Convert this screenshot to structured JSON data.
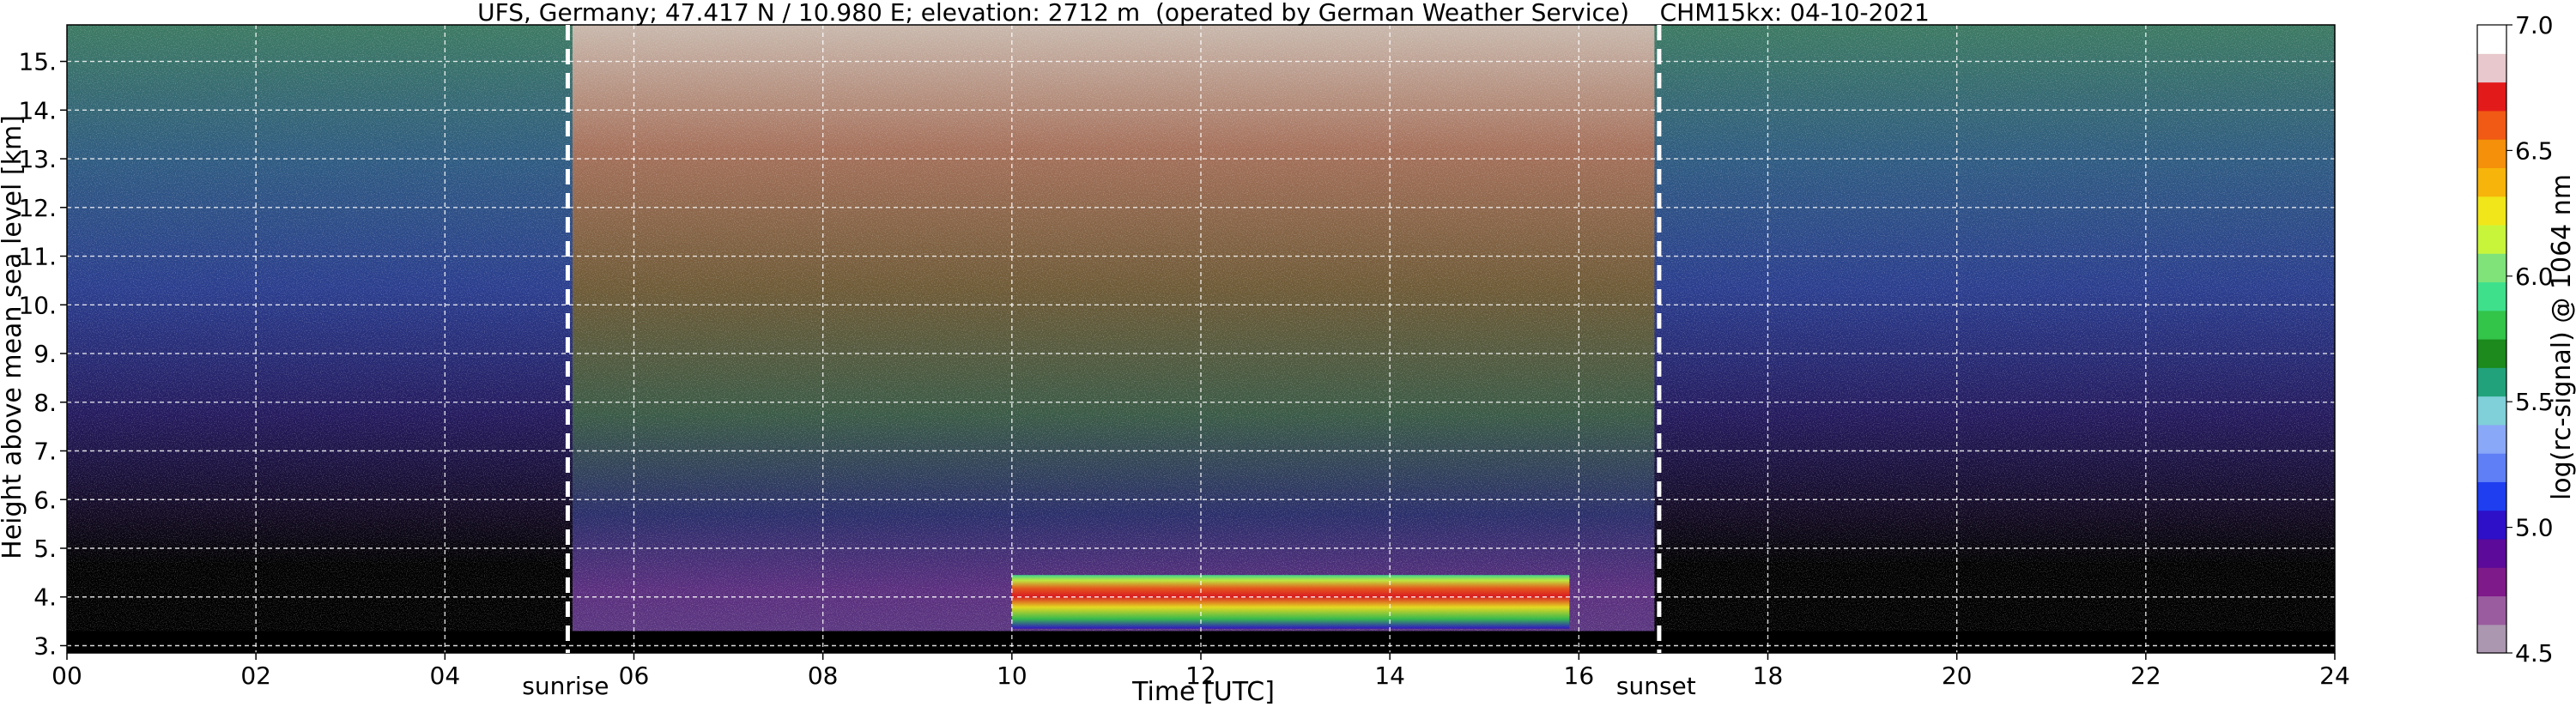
{
  "chart_data": {
    "type": "heatmap",
    "title": "UFS, Germany; 47.417 N / 10.980 E; elevation: 2712 m  (operated by German Weather Service)    CHM15kx: 04-10-2021",
    "xlabel": "Time [UTC]",
    "ylabel": "Height above mean sea level [km]",
    "x_ticks": [
      "00",
      "02",
      "04",
      "06",
      "08",
      "10",
      "12",
      "14",
      "16",
      "18",
      "20",
      "22",
      "24"
    ],
    "x_tick_values": [
      0,
      2,
      4,
      6,
      8,
      10,
      12,
      14,
      16,
      18,
      20,
      22,
      24
    ],
    "y_ticks": [
      "3.",
      "4.",
      "5.",
      "6.",
      "7.",
      "8.",
      "9.",
      "10.",
      "11.",
      "12.",
      "13.",
      "14.",
      "15."
    ],
    "y_tick_values": [
      3,
      4,
      5,
      6,
      7,
      8,
      9,
      10,
      11,
      12,
      13,
      14,
      15
    ],
    "xlim": [
      0,
      24
    ],
    "ylim": [
      2.85,
      15.75
    ],
    "grid": true,
    "colorbar": {
      "label": "log(rc-signal) @ 1064 nm",
      "range": [
        4.5,
        7.0
      ],
      "ticks": [
        "4.5",
        "5.0",
        "5.5",
        "6.0",
        "6.5",
        "7.0"
      ],
      "tick_values": [
        4.5,
        5.0,
        5.5,
        6.0,
        6.5,
        7.0
      ],
      "colors": [
        "#ab97b0",
        "#9a5c9f",
        "#7f1a8a",
        "#5b0a9a",
        "#2d10c8",
        "#1f3ef0",
        "#5e7ff5",
        "#8aa8f8",
        "#7fd0d8",
        "#22a27a",
        "#1c8a1c",
        "#33c44a",
        "#3fe08c",
        "#7fe37a",
        "#c8f53a",
        "#f0e61a",
        "#f7b40a",
        "#f4900a",
        "#f05a14",
        "#e31a1a",
        "#e8c8cc",
        "#ffffff"
      ]
    },
    "annotations": [
      {
        "text": "sunrise",
        "x": 5.3
      },
      {
        "text": "sunset",
        "x": 16.85
      }
    ],
    "cloud_layers": [
      {
        "x_start": 10.0,
        "x_end": 15.9,
        "y_bottom": 3.35,
        "y_top": 4.45
      }
    ]
  }
}
